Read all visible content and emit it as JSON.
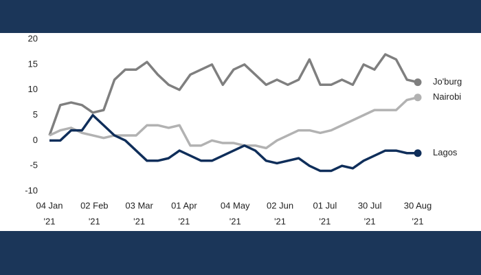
{
  "chart_data": {
    "type": "line",
    "x": [
      "2021-01-04",
      "2021-01-11",
      "2021-01-18",
      "2021-01-25",
      "2021-02-01",
      "2021-02-08",
      "2021-02-15",
      "2021-02-22",
      "2021-03-01",
      "2021-03-08",
      "2021-03-15",
      "2021-03-22",
      "2021-03-29",
      "2021-04-05",
      "2021-04-12",
      "2021-04-19",
      "2021-04-26",
      "2021-05-03",
      "2021-05-10",
      "2021-05-17",
      "2021-05-24",
      "2021-05-31",
      "2021-06-07",
      "2021-06-14",
      "2021-06-21",
      "2021-06-28",
      "2021-07-05",
      "2021-07-12",
      "2021-07-19",
      "2021-07-26",
      "2021-08-02",
      "2021-08-09",
      "2021-08-16",
      "2021-08-23",
      "2021-08-30"
    ],
    "series": [
      {
        "name": "Jo'burg",
        "color": "#7f7f7f",
        "values": [
          1,
          7,
          7.5,
          7,
          5.5,
          6,
          12,
          14,
          14,
          15.5,
          13,
          11,
          10,
          13,
          14,
          15,
          11,
          14,
          15,
          13,
          11,
          12,
          11,
          12,
          16,
          11,
          11,
          12,
          11,
          15,
          14,
          17,
          16,
          12,
          11.5
        ]
      },
      {
        "name": "Nairobi",
        "color": "#b2b2b2",
        "values": [
          1,
          2,
          2.5,
          1.5,
          1,
          0.5,
          1,
          1,
          1,
          3,
          3,
          2.5,
          3,
          -1,
          -1,
          0,
          -0.5,
          -0.5,
          -1,
          -1,
          -1.5,
          0,
          1,
          2,
          2,
          1.5,
          2,
          3,
          4,
          5,
          6,
          6,
          6,
          8,
          8.5
        ]
      },
      {
        "name": "Lagos",
        "color": "#0f2e5a",
        "values": [
          0,
          0,
          2,
          2,
          5,
          3,
          1,
          0,
          -2,
          -4,
          -4,
          -3.5,
          -2,
          -3,
          -4,
          -4,
          -3,
          -2,
          -1,
          -2,
          -4,
          -4.5,
          -4,
          -3.5,
          -5,
          -6,
          -6,
          -5,
          -5.5,
          -4,
          -3,
          -2,
          -2,
          -2.5,
          -2.5
        ]
      }
    ],
    "xlim": [
      "2021-01-04",
      "2021-08-30"
    ],
    "xticks": [
      {
        "value": "2021-01-04",
        "label": [
          "04 Jan",
          "'21"
        ]
      },
      {
        "value": "2021-02-02",
        "label": [
          "02 Feb",
          "'21"
        ]
      },
      {
        "value": "2021-03-03",
        "label": [
          "03 Mar",
          "'21"
        ]
      },
      {
        "value": "2021-04-01",
        "label": [
          "01 Apr",
          "'21"
        ]
      },
      {
        "value": "2021-05-04",
        "label": [
          "04 May",
          "'21"
        ]
      },
      {
        "value": "2021-06-02",
        "label": [
          "02 Jun",
          "'21"
        ]
      },
      {
        "value": "2021-07-01",
        "label": [
          "01 Jul",
          "'21"
        ]
      },
      {
        "value": "2021-07-30",
        "label": [
          "30 Jul",
          "'21"
        ]
      },
      {
        "value": "2021-08-30",
        "label": [
          "30 Aug",
          "'21"
        ]
      }
    ],
    "ylim": [
      -10,
      20
    ],
    "yticks": [
      -10,
      -5,
      0,
      5,
      10,
      15,
      20
    ]
  }
}
